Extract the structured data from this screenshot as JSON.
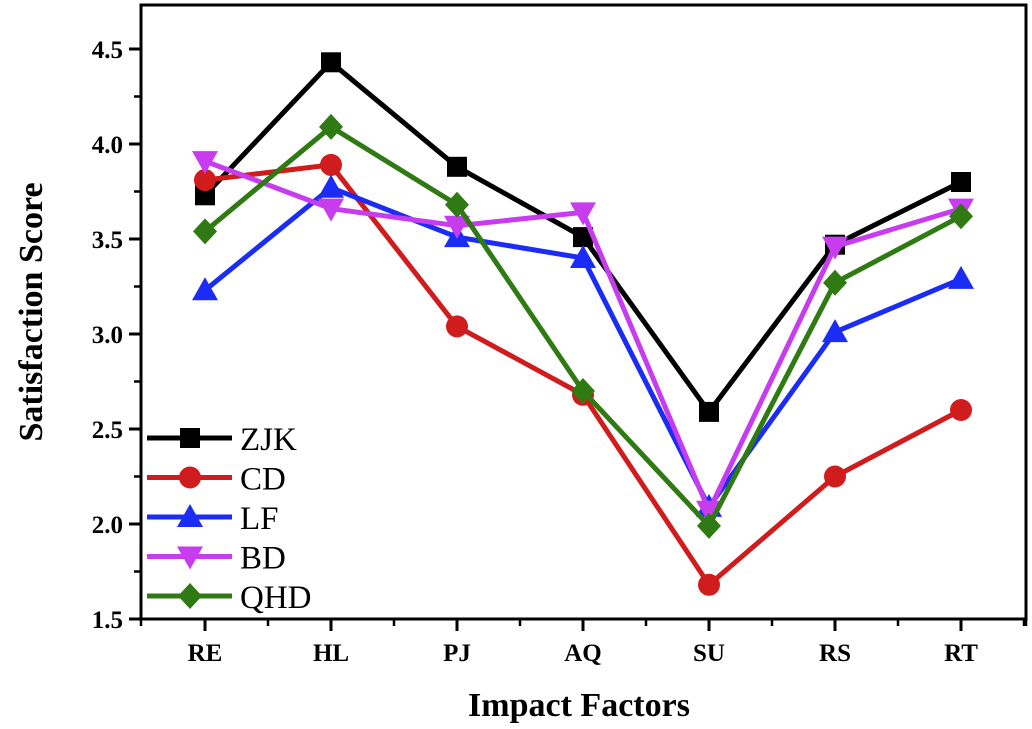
{
  "chart_data": {
    "type": "line",
    "title": "",
    "xlabel": "Impact Factors",
    "ylabel": "Satisfaction Score",
    "categories": [
      "RE",
      "HL",
      "PJ",
      "AQ",
      "SU",
      "RS",
      "RT"
    ],
    "ylim": [
      1.5,
      4.75
    ],
    "yticks": [
      1.5,
      2.0,
      2.5,
      3.0,
      3.5,
      4.0,
      4.5
    ],
    "ytick_labels": [
      "1.5",
      "2.0",
      "2.5",
      "3.0",
      "3.5",
      "4.0",
      "4.5"
    ],
    "grid": false,
    "legend_position": "bottom-left",
    "series": [
      {
        "name": "ZJK",
        "color": "#000000",
        "marker": "square",
        "values": [
          3.73,
          4.43,
          3.88,
          3.51,
          2.59,
          3.47,
          3.8
        ]
      },
      {
        "name": "CD",
        "color": "#d01c1c",
        "marker": "circle",
        "values": [
          3.81,
          3.89,
          3.04,
          2.68,
          1.68,
          2.25,
          2.6
        ]
      },
      {
        "name": "LF",
        "color": "#1a2cf5",
        "marker": "triangle-up",
        "values": [
          3.23,
          3.77,
          3.51,
          3.4,
          2.09,
          3.01,
          3.29
        ]
      },
      {
        "name": "BD",
        "color": "#c83cf0",
        "marker": "triangle-down",
        "values": [
          3.91,
          3.66,
          3.57,
          3.64,
          2.07,
          3.46,
          3.66
        ]
      },
      {
        "name": "QHD",
        "color": "#2f7a12",
        "marker": "diamond",
        "values": [
          3.54,
          4.09,
          3.68,
          2.7,
          1.99,
          3.27,
          3.62
        ]
      }
    ]
  }
}
